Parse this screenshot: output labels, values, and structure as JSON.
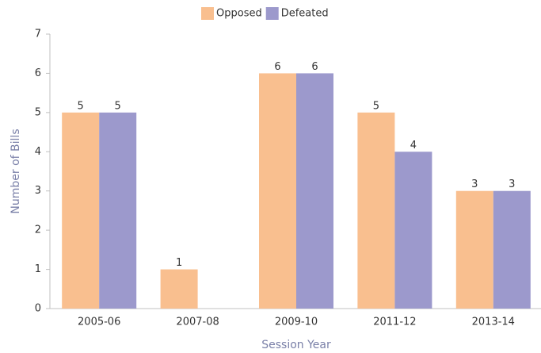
{
  "chart_data": {
    "type": "bar",
    "categories": [
      "2005-06",
      "2007-08",
      "2009-10",
      "2011-12",
      "2013-14"
    ],
    "series": [
      {
        "name": "Opposed",
        "color": "#f9bf8f",
        "values": [
          5,
          1,
          6,
          5,
          3
        ]
      },
      {
        "name": "Defeated",
        "color": "#9c99cc",
        "values": [
          5,
          0,
          6,
          4,
          3
        ]
      }
    ],
    "ylabel": "Number of Bills",
    "xlabel": "Session Year",
    "ylim": [
      0,
      7
    ],
    "yticks": [
      0,
      1,
      2,
      3,
      4,
      5,
      6,
      7
    ],
    "grid": false,
    "legend": "top"
  }
}
